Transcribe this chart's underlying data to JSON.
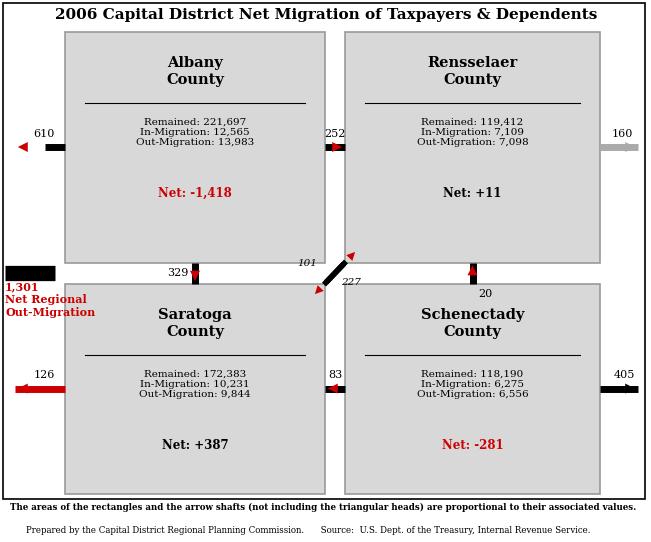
{
  "title": "2006 Capital District Net Migration of Taxpayers & Dependents",
  "counties": {
    "albany": {
      "name": "Albany\nCounty",
      "remained": "221,697",
      "in_migration": "12,565",
      "out_migration": "13,983",
      "net": "-1,418",
      "net_color": "#cc0000"
    },
    "rensselaer": {
      "name": "Rensselaer\nCounty",
      "remained": "119,412",
      "in_migration": "7,109",
      "out_migration": "7,098",
      "net": "+11",
      "net_color": "#000000"
    },
    "saratoga": {
      "name": "Saratoga\nCounty",
      "remained": "172,383",
      "in_migration": "10,231",
      "out_migration": "9,844",
      "net": "+387",
      "net_color": "#000000"
    },
    "schenectady": {
      "name": "Schenectady\nCounty",
      "remained": "118,190",
      "in_migration": "6,275",
      "out_migration": "6,556",
      "net": "-281",
      "net_color": "#cc0000"
    }
  },
  "footnote1": "The areas of the rectangles and the arrow shafts (not including the triangular heads) are proportional to their associated values.",
  "footnote2": "Prepared by the Capital District Regional Planning Commission.      Source:  U.S. Dept. of the Treasury, Internal Revenue Service.",
  "rect_color": "#d8d8d8",
  "rect_edge": "#999999",
  "red": "#cc0000",
  "black": "#000000",
  "gray": "#aaaaaa"
}
